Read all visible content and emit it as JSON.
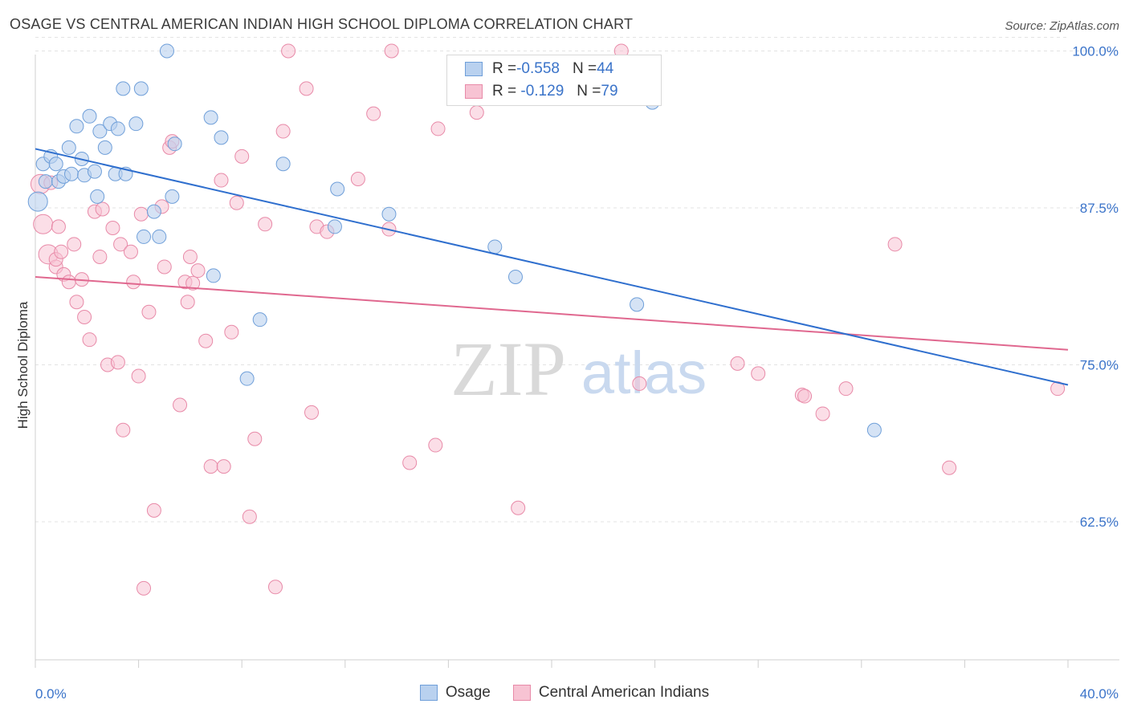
{
  "header": {
    "title": "OSAGE VS CENTRAL AMERICAN INDIAN HIGH SCHOOL DIPLOMA CORRELATION CHART",
    "source": "Source: ZipAtlas.com"
  },
  "watermark": {
    "zip": "ZIP",
    "atlas": "atlas"
  },
  "legend_top": {
    "rows": [
      {
        "r_label": "R = ",
        "r_value": "-0.558",
        "n_label": "N = ",
        "n_value": "44"
      },
      {
        "r_label": "R = ",
        "r_value": " -0.129",
        "n_label": "N = ",
        "n_value": "79"
      }
    ]
  },
  "legend_bottom": {
    "items": [
      "Osage",
      "Central American Indians"
    ]
  },
  "colors": {
    "osage_fill": "#b9d1ef",
    "osage_stroke": "#6f9fd9",
    "osage_line": "#2f6fce",
    "cai_fill": "#f7c3d3",
    "cai_stroke": "#e88aa8",
    "cai_line": "#e0688f",
    "axis_label": "#3a73c9",
    "grid": "#e3e3e3"
  },
  "chart_data": {
    "type": "scatter",
    "title": "OSAGE VS CENTRAL AMERICAN INDIAN HIGH SCHOOL DIPLOMA CORRELATION CHART",
    "xlabel": "",
    "ylabel": "High School Diploma",
    "xlim": [
      0,
      40
    ],
    "ylim": [
      51.5,
      101.5
    ],
    "x_tick_labels": [
      "0.0%",
      "40.0%"
    ],
    "y_ticks": [
      62.5,
      75.0,
      87.5,
      100.0
    ],
    "y_tick_labels": [
      "62.5%",
      "75.0%",
      "87.5%",
      "100.0%"
    ],
    "grid": true,
    "legend_position": "top-center",
    "series": [
      {
        "name": "Osage",
        "r": -0.558,
        "n": 44,
        "trend": {
          "x": [
            0,
            40
          ],
          "y": [
            92.2,
            73.4
          ]
        },
        "points": [
          [
            0.1,
            88.0
          ],
          [
            0.3,
            91.0
          ],
          [
            0.4,
            89.6
          ],
          [
            0.6,
            91.6
          ],
          [
            0.8,
            91.0
          ],
          [
            0.9,
            89.6
          ],
          [
            1.1,
            90.0
          ],
          [
            1.3,
            92.3
          ],
          [
            1.4,
            90.2
          ],
          [
            1.6,
            94.0
          ],
          [
            1.8,
            91.4
          ],
          [
            1.9,
            90.1
          ],
          [
            2.1,
            94.8
          ],
          [
            2.3,
            90.4
          ],
          [
            2.4,
            88.4
          ],
          [
            2.5,
            93.6
          ],
          [
            2.7,
            92.3
          ],
          [
            2.9,
            94.2
          ],
          [
            3.1,
            90.2
          ],
          [
            3.2,
            93.8
          ],
          [
            3.4,
            97.0
          ],
          [
            3.5,
            90.2
          ],
          [
            3.9,
            94.2
          ],
          [
            4.1,
            97.0
          ],
          [
            4.2,
            85.2
          ],
          [
            4.6,
            87.2
          ],
          [
            4.8,
            85.2
          ],
          [
            5.1,
            100.0
          ],
          [
            5.3,
            88.4
          ],
          [
            5.4,
            92.6
          ],
          [
            6.8,
            94.7
          ],
          [
            6.9,
            82.1
          ],
          [
            7.2,
            93.1
          ],
          [
            8.7,
            78.6
          ],
          [
            8.2,
            73.9
          ],
          [
            9.6,
            91.0
          ],
          [
            11.6,
            86.0
          ],
          [
            11.7,
            89.0
          ],
          [
            13.7,
            87.0
          ],
          [
            17.8,
            84.4
          ],
          [
            18.6,
            82.0
          ],
          [
            23.3,
            79.8
          ],
          [
            23.9,
            95.9
          ],
          [
            32.5,
            69.8
          ]
        ]
      },
      {
        "name": "Central American Indians",
        "r": -0.129,
        "n": 79,
        "trend": {
          "x": [
            0,
            40
          ],
          "y": [
            82.0,
            76.2
          ]
        },
        "points": [
          [
            0.2,
            89.4
          ],
          [
            0.3,
            86.2
          ],
          [
            0.5,
            83.8
          ],
          [
            0.8,
            82.8
          ],
          [
            0.8,
            83.4
          ],
          [
            1.0,
            84.0
          ],
          [
            1.1,
            82.2
          ],
          [
            1.3,
            81.6
          ],
          [
            1.5,
            84.6
          ],
          [
            1.6,
            80.0
          ],
          [
            1.8,
            81.8
          ],
          [
            1.9,
            78.8
          ],
          [
            2.1,
            77.0
          ],
          [
            2.3,
            87.2
          ],
          [
            2.5,
            83.6
          ],
          [
            2.6,
            87.4
          ],
          [
            2.8,
            75.0
          ],
          [
            3.0,
            85.9
          ],
          [
            3.2,
            75.2
          ],
          [
            3.3,
            84.6
          ],
          [
            3.4,
            69.8
          ],
          [
            3.7,
            84.0
          ],
          [
            3.8,
            81.6
          ],
          [
            4.0,
            74.1
          ],
          [
            4.1,
            87.0
          ],
          [
            4.2,
            57.2
          ],
          [
            4.4,
            79.2
          ],
          [
            4.6,
            63.4
          ],
          [
            4.9,
            87.6
          ],
          [
            5.0,
            82.8
          ],
          [
            5.2,
            92.3
          ],
          [
            5.3,
            92.8
          ],
          [
            5.6,
            71.8
          ],
          [
            5.8,
            81.6
          ],
          [
            5.9,
            80.0
          ],
          [
            6.0,
            83.6
          ],
          [
            6.1,
            81.5
          ],
          [
            6.3,
            82.5
          ],
          [
            6.6,
            76.9
          ],
          [
            6.8,
            66.9
          ],
          [
            7.2,
            89.7
          ],
          [
            7.3,
            66.9
          ],
          [
            7.6,
            77.6
          ],
          [
            7.8,
            87.9
          ],
          [
            8.0,
            91.6
          ],
          [
            8.3,
            62.9
          ],
          [
            8.5,
            69.1
          ],
          [
            8.9,
            86.2
          ],
          [
            9.3,
            57.3
          ],
          [
            9.6,
            93.6
          ],
          [
            9.8,
            100.0
          ],
          [
            10.5,
            97.0
          ],
          [
            10.7,
            71.2
          ],
          [
            10.9,
            86.0
          ],
          [
            11.3,
            85.6
          ],
          [
            12.5,
            89.8
          ],
          [
            13.1,
            95.0
          ],
          [
            13.7,
            85.8
          ],
          [
            13.8,
            100.0
          ],
          [
            14.5,
            67.2
          ],
          [
            15.5,
            68.6
          ],
          [
            15.6,
            93.8
          ],
          [
            17.1,
            95.1
          ],
          [
            17.7,
            96.3
          ],
          [
            18.5,
            96.3
          ],
          [
            18.7,
            63.6
          ],
          [
            22.7,
            100.0
          ],
          [
            23.4,
            73.5
          ],
          [
            27.2,
            75.1
          ],
          [
            28.0,
            74.3
          ],
          [
            29.7,
            72.6
          ],
          [
            29.8,
            72.5
          ],
          [
            30.5,
            71.1
          ],
          [
            31.4,
            73.1
          ],
          [
            33.3,
            84.6
          ],
          [
            35.4,
            66.8
          ],
          [
            39.6,
            73.1
          ],
          [
            0.6,
            89.5
          ],
          [
            0.9,
            86.0
          ]
        ]
      }
    ]
  }
}
